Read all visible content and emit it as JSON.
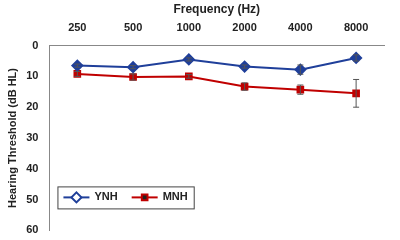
{
  "chart_data": {
    "type": "line",
    "x_label": "Frequency (Hz)",
    "y_label": "Hearing Threshold (dB HL)",
    "categories": [
      "250",
      "500",
      "1000",
      "2000",
      "4000",
      "8000"
    ],
    "series": [
      {
        "name": "YNH",
        "color": "#1f3f9a",
        "marker": "diamond",
        "line_style": "solid",
        "values": [
          6.5,
          7,
          4.5,
          6.8,
          7.8,
          4
        ],
        "errors": [
          0.5,
          0.5,
          0.5,
          0.5,
          1.5,
          1
        ]
      },
      {
        "name": "MNH",
        "color": "#c00000",
        "marker": "square",
        "line_style": "solid",
        "values": [
          9.2,
          10.2,
          10,
          13.3,
          14.3,
          15.5
        ],
        "errors": [
          0.8,
          1,
          0.6,
          1.2,
          1.5,
          4.5
        ]
      }
    ],
    "ylim": [
      0,
      60
    ],
    "yticks": [
      0,
      10,
      20,
      30,
      40,
      50,
      60
    ],
    "grid": false,
    "legend": "lower left"
  }
}
